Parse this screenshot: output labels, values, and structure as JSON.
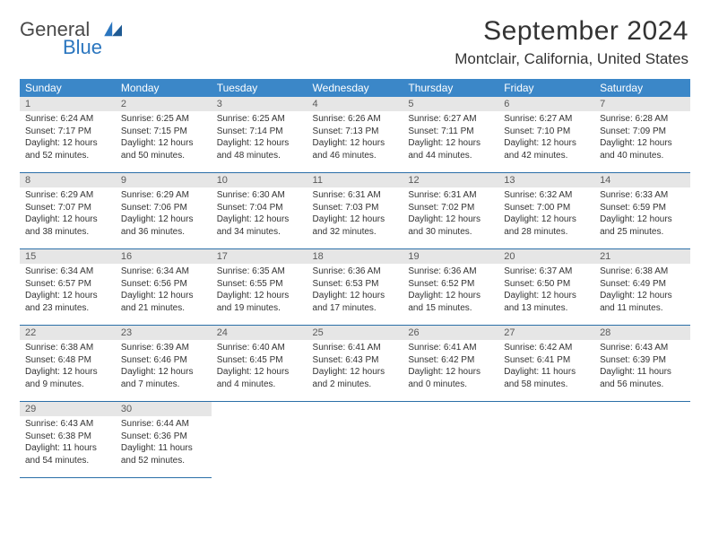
{
  "logo": {
    "word1": "General",
    "word2": "Blue"
  },
  "title": "September 2024",
  "subtitle": "Montclair, California, United States",
  "colors": {
    "header_bg": "#3b87c8",
    "header_text": "#ffffff",
    "daybar_bg": "#e6e6e6",
    "rule": "#2b6fa8",
    "logo_blue": "#2b76bf"
  },
  "weekdays": [
    "Sunday",
    "Monday",
    "Tuesday",
    "Wednesday",
    "Thursday",
    "Friday",
    "Saturday"
  ],
  "weeks": [
    [
      {
        "n": "1",
        "sr": "Sunrise: 6:24 AM",
        "ss": "Sunset: 7:17 PM",
        "d1": "Daylight: 12 hours",
        "d2": "and 52 minutes."
      },
      {
        "n": "2",
        "sr": "Sunrise: 6:25 AM",
        "ss": "Sunset: 7:15 PM",
        "d1": "Daylight: 12 hours",
        "d2": "and 50 minutes."
      },
      {
        "n": "3",
        "sr": "Sunrise: 6:25 AM",
        "ss": "Sunset: 7:14 PM",
        "d1": "Daylight: 12 hours",
        "d2": "and 48 minutes."
      },
      {
        "n": "4",
        "sr": "Sunrise: 6:26 AM",
        "ss": "Sunset: 7:13 PM",
        "d1": "Daylight: 12 hours",
        "d2": "and 46 minutes."
      },
      {
        "n": "5",
        "sr": "Sunrise: 6:27 AM",
        "ss": "Sunset: 7:11 PM",
        "d1": "Daylight: 12 hours",
        "d2": "and 44 minutes."
      },
      {
        "n": "6",
        "sr": "Sunrise: 6:27 AM",
        "ss": "Sunset: 7:10 PM",
        "d1": "Daylight: 12 hours",
        "d2": "and 42 minutes."
      },
      {
        "n": "7",
        "sr": "Sunrise: 6:28 AM",
        "ss": "Sunset: 7:09 PM",
        "d1": "Daylight: 12 hours",
        "d2": "and 40 minutes."
      }
    ],
    [
      {
        "n": "8",
        "sr": "Sunrise: 6:29 AM",
        "ss": "Sunset: 7:07 PM",
        "d1": "Daylight: 12 hours",
        "d2": "and 38 minutes."
      },
      {
        "n": "9",
        "sr": "Sunrise: 6:29 AM",
        "ss": "Sunset: 7:06 PM",
        "d1": "Daylight: 12 hours",
        "d2": "and 36 minutes."
      },
      {
        "n": "10",
        "sr": "Sunrise: 6:30 AM",
        "ss": "Sunset: 7:04 PM",
        "d1": "Daylight: 12 hours",
        "d2": "and 34 minutes."
      },
      {
        "n": "11",
        "sr": "Sunrise: 6:31 AM",
        "ss": "Sunset: 7:03 PM",
        "d1": "Daylight: 12 hours",
        "d2": "and 32 minutes."
      },
      {
        "n": "12",
        "sr": "Sunrise: 6:31 AM",
        "ss": "Sunset: 7:02 PM",
        "d1": "Daylight: 12 hours",
        "d2": "and 30 minutes."
      },
      {
        "n": "13",
        "sr": "Sunrise: 6:32 AM",
        "ss": "Sunset: 7:00 PM",
        "d1": "Daylight: 12 hours",
        "d2": "and 28 minutes."
      },
      {
        "n": "14",
        "sr": "Sunrise: 6:33 AM",
        "ss": "Sunset: 6:59 PM",
        "d1": "Daylight: 12 hours",
        "d2": "and 25 minutes."
      }
    ],
    [
      {
        "n": "15",
        "sr": "Sunrise: 6:34 AM",
        "ss": "Sunset: 6:57 PM",
        "d1": "Daylight: 12 hours",
        "d2": "and 23 minutes."
      },
      {
        "n": "16",
        "sr": "Sunrise: 6:34 AM",
        "ss": "Sunset: 6:56 PM",
        "d1": "Daylight: 12 hours",
        "d2": "and 21 minutes."
      },
      {
        "n": "17",
        "sr": "Sunrise: 6:35 AM",
        "ss": "Sunset: 6:55 PM",
        "d1": "Daylight: 12 hours",
        "d2": "and 19 minutes."
      },
      {
        "n": "18",
        "sr": "Sunrise: 6:36 AM",
        "ss": "Sunset: 6:53 PM",
        "d1": "Daylight: 12 hours",
        "d2": "and 17 minutes."
      },
      {
        "n": "19",
        "sr": "Sunrise: 6:36 AM",
        "ss": "Sunset: 6:52 PM",
        "d1": "Daylight: 12 hours",
        "d2": "and 15 minutes."
      },
      {
        "n": "20",
        "sr": "Sunrise: 6:37 AM",
        "ss": "Sunset: 6:50 PM",
        "d1": "Daylight: 12 hours",
        "d2": "and 13 minutes."
      },
      {
        "n": "21",
        "sr": "Sunrise: 6:38 AM",
        "ss": "Sunset: 6:49 PM",
        "d1": "Daylight: 12 hours",
        "d2": "and 11 minutes."
      }
    ],
    [
      {
        "n": "22",
        "sr": "Sunrise: 6:38 AM",
        "ss": "Sunset: 6:48 PM",
        "d1": "Daylight: 12 hours",
        "d2": "and 9 minutes."
      },
      {
        "n": "23",
        "sr": "Sunrise: 6:39 AM",
        "ss": "Sunset: 6:46 PM",
        "d1": "Daylight: 12 hours",
        "d2": "and 7 minutes."
      },
      {
        "n": "24",
        "sr": "Sunrise: 6:40 AM",
        "ss": "Sunset: 6:45 PM",
        "d1": "Daylight: 12 hours",
        "d2": "and 4 minutes."
      },
      {
        "n": "25",
        "sr": "Sunrise: 6:41 AM",
        "ss": "Sunset: 6:43 PM",
        "d1": "Daylight: 12 hours",
        "d2": "and 2 minutes."
      },
      {
        "n": "26",
        "sr": "Sunrise: 6:41 AM",
        "ss": "Sunset: 6:42 PM",
        "d1": "Daylight: 12 hours",
        "d2": "and 0 minutes."
      },
      {
        "n": "27",
        "sr": "Sunrise: 6:42 AM",
        "ss": "Sunset: 6:41 PM",
        "d1": "Daylight: 11 hours",
        "d2": "and 58 minutes."
      },
      {
        "n": "28",
        "sr": "Sunrise: 6:43 AM",
        "ss": "Sunset: 6:39 PM",
        "d1": "Daylight: 11 hours",
        "d2": "and 56 minutes."
      }
    ],
    [
      {
        "n": "29",
        "sr": "Sunrise: 6:43 AM",
        "ss": "Sunset: 6:38 PM",
        "d1": "Daylight: 11 hours",
        "d2": "and 54 minutes."
      },
      {
        "n": "30",
        "sr": "Sunrise: 6:44 AM",
        "ss": "Sunset: 6:36 PM",
        "d1": "Daylight: 11 hours",
        "d2": "and 52 minutes."
      },
      {
        "n": "",
        "sr": "",
        "ss": "",
        "d1": "",
        "d2": ""
      },
      {
        "n": "",
        "sr": "",
        "ss": "",
        "d1": "",
        "d2": ""
      },
      {
        "n": "",
        "sr": "",
        "ss": "",
        "d1": "",
        "d2": ""
      },
      {
        "n": "",
        "sr": "",
        "ss": "",
        "d1": "",
        "d2": ""
      },
      {
        "n": "",
        "sr": "",
        "ss": "",
        "d1": "",
        "d2": ""
      }
    ]
  ]
}
